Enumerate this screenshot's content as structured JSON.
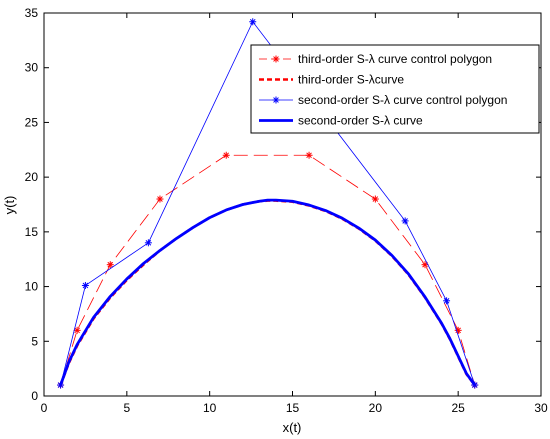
{
  "chart_data": {
    "type": "line",
    "xlabel": "x(t)",
    "ylabel": "y(t)",
    "xlim": [
      0,
      30
    ],
    "ylim": [
      0,
      35
    ],
    "x_ticks": [
      0,
      5,
      10,
      15,
      20,
      25,
      30
    ],
    "y_ticks": [
      0,
      5,
      10,
      15,
      20,
      25,
      30,
      35
    ],
    "x_tick_labels": [
      "0",
      "5",
      "10",
      "15",
      "20",
      "25",
      "30"
    ],
    "y_tick_labels": [
      "0",
      "5",
      "10",
      "15",
      "20",
      "25",
      "30",
      "35"
    ],
    "grid": false,
    "legend_position": "top-right",
    "series": [
      {
        "name": "third-order S-λ curve control polygon",
        "style": "dash",
        "marker": "*",
        "color": "#ff0000",
        "x": [
          1,
          2,
          4,
          7,
          11,
          16,
          20,
          23,
          25,
          26
        ],
        "y": [
          1,
          6,
          12,
          18,
          22,
          22,
          18,
          12,
          6,
          1
        ]
      },
      {
        "name": "third-order S-λcurve",
        "style": "dashed-thick",
        "color": "#ff0000",
        "x": [
          1.0,
          1.5,
          2.0,
          3.0,
          4.0,
          5.0,
          6.0,
          7.0,
          8.0,
          9.0,
          10.0,
          11.0,
          12.0,
          13.0,
          13.5,
          14.0,
          15.0,
          16.0,
          17.0,
          18.0,
          19.0,
          20.0,
          21.0,
          22.0,
          23.0,
          24.0,
          24.5,
          25.0,
          25.5,
          26.0
        ],
        "y": [
          1.0,
          3.0,
          4.6,
          7.1,
          9.0,
          10.6,
          12.0,
          13.3,
          14.4,
          15.4,
          16.3,
          17.0,
          17.5,
          17.8,
          17.85,
          17.85,
          17.75,
          17.4,
          16.9,
          16.2,
          15.3,
          14.2,
          12.8,
          11.1,
          9.0,
          6.6,
          5.2,
          3.6,
          2.0,
          1.0
        ]
      },
      {
        "name": "second-order S-λ curve control polygon",
        "style": "solid-thin",
        "marker": "*",
        "color": "#0000ff",
        "x": [
          1,
          2.5,
          6.3,
          12.6,
          21.8,
          24.3,
          26
        ],
        "y": [
          1,
          10.1,
          14,
          34.2,
          16,
          8.7,
          1
        ]
      },
      {
        "name": "second-order S-λ curve",
        "style": "solid-thick",
        "color": "#0000ff",
        "x": [
          1.0,
          1.5,
          2.0,
          3.0,
          4.0,
          5.0,
          6.0,
          7.0,
          8.0,
          9.0,
          10.0,
          11.0,
          12.0,
          13.0,
          13.5,
          14.0,
          15.0,
          16.0,
          17.0,
          18.0,
          19.0,
          20.0,
          21.0,
          22.0,
          23.0,
          24.0,
          24.5,
          25.0,
          25.5,
          26.0
        ],
        "y": [
          1.0,
          3.1,
          4.7,
          7.2,
          9.1,
          10.7,
          12.1,
          13.3,
          14.4,
          15.4,
          16.3,
          17.0,
          17.5,
          17.8,
          17.9,
          17.9,
          17.8,
          17.45,
          16.95,
          16.25,
          15.35,
          14.25,
          12.85,
          11.15,
          9.05,
          6.65,
          5.25,
          3.65,
          2.05,
          1.0
        ]
      }
    ]
  }
}
